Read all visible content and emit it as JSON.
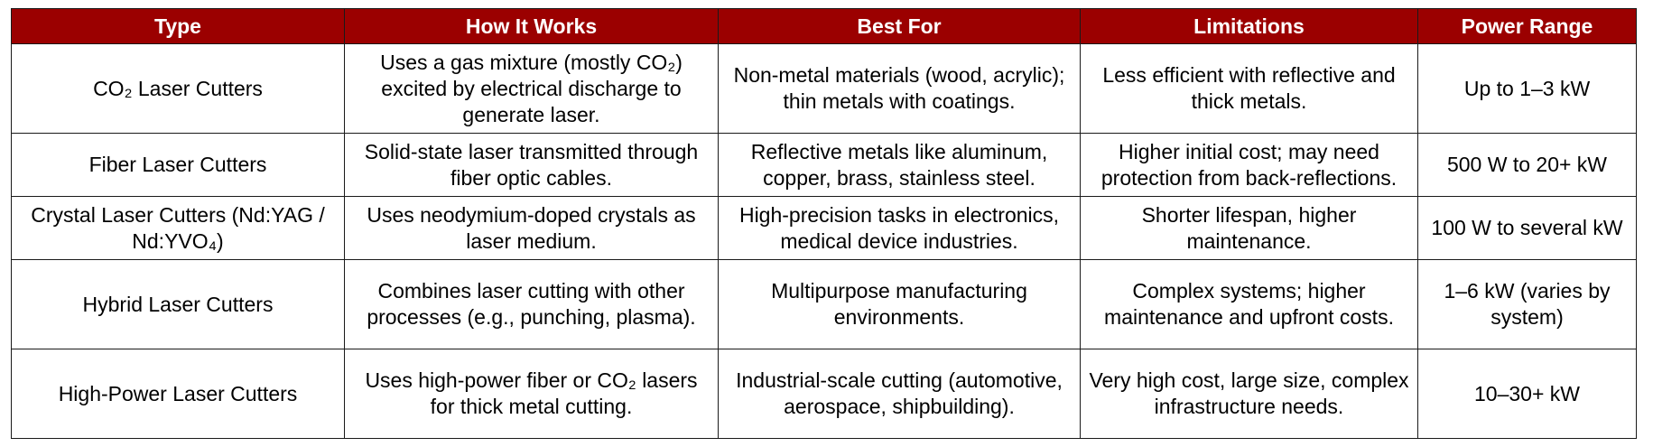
{
  "table": {
    "headers": [
      "Type",
      "How It Works",
      "Best For",
      "Limitations",
      "Power Range"
    ],
    "rows": [
      [
        "CO₂ Laser Cutters",
        "Uses a gas mixture (mostly CO₂) excited by electrical discharge to generate laser.",
        "Non-metal materials (wood, acrylic); thin metals with coatings.",
        "Less efficient with reflective and thick metals.",
        "Up to 1–3 kW"
      ],
      [
        "Fiber Laser Cutters",
        "Solid-state laser transmitted through fiber optic cables.",
        "Reflective metals like aluminum, copper, brass, stainless steel.",
        "Higher initial cost; may need protection from back-reflections.",
        "500 W to 20+ kW"
      ],
      [
        "Crystal Laser Cutters (Nd:YAG / Nd:YVO₄)",
        "Uses neodymium-doped crystals as laser medium.",
        "High-precision tasks in electronics, medical device industries.",
        "Shorter lifespan, higher maintenance.",
        "100 W to several kW"
      ],
      [
        "Hybrid Laser Cutters",
        "Combines laser cutting with other processes (e.g., punching, plasma).",
        "Multipurpose manufacturing environments.",
        "Complex systems; higher maintenance and upfront costs.",
        "1–6 kW (varies by system)"
      ],
      [
        "High-Power Laser Cutters",
        "Uses high-power fiber or CO₂ lasers for thick metal cutting.",
        "Industrial-scale cutting (automotive, aerospace, shipbuilding).",
        "Very high cost, large size, complex infrastructure needs.",
        "10–30+ kW"
      ]
    ]
  },
  "colors": {
    "header_background": "#9b0000",
    "header_text": "#ffffff",
    "border": "#1a1a1a"
  }
}
